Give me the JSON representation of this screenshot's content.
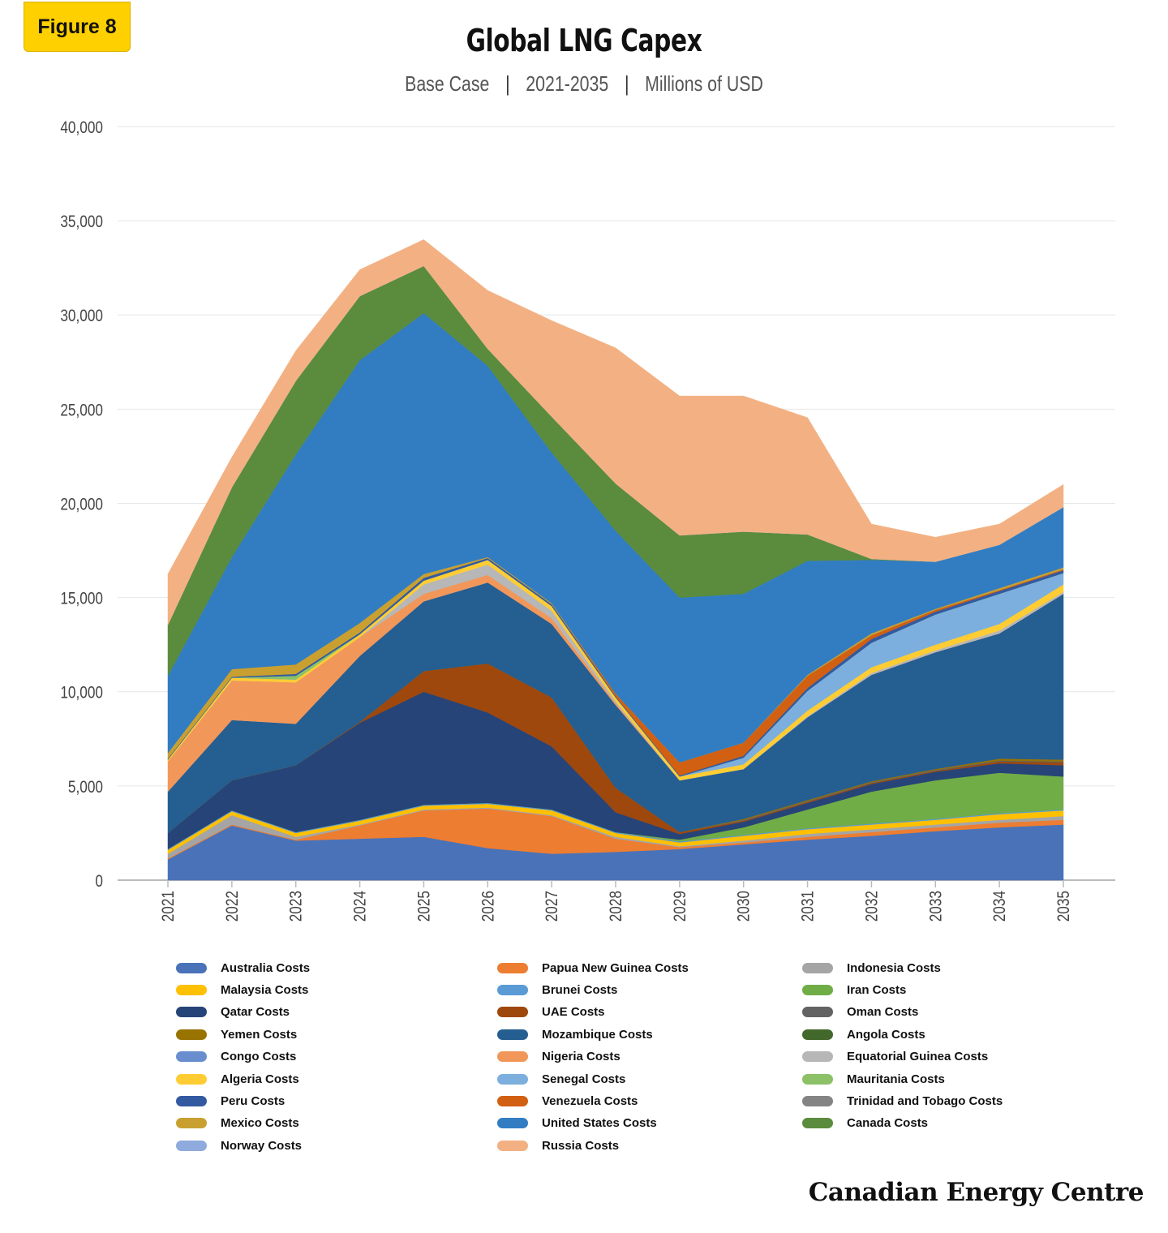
{
  "badge": "Figure 8",
  "header": {
    "title": "Global LNG Capex",
    "subtitle_parts": [
      "Base Case",
      "2021-2035",
      "Millions of USD"
    ],
    "separator": "|"
  },
  "footer": {
    "brand": "Canadian Energy Centre"
  },
  "chart_data": {
    "type": "area",
    "stacked": true,
    "title": "Global LNG Capex",
    "subtitle": "Base Case | 2021-2035 | Millions of USD",
    "xlabel": "",
    "ylabel": "",
    "ylim": [
      0,
      40000
    ],
    "yticks": [
      "0",
      "5,000",
      "10,000",
      "15,000",
      "20,000",
      "25,000",
      "30,000",
      "35,000",
      "40,000"
    ],
    "ytick_values": [
      0,
      5000,
      10000,
      15000,
      20000,
      25000,
      30000,
      35000,
      40000
    ],
    "grid": true,
    "legend_position": "bottom",
    "categories": [
      "2021",
      "2022",
      "2023",
      "2024",
      "2025",
      "2026",
      "2027",
      "2028",
      "2029",
      "2030",
      "2031",
      "2032",
      "2033",
      "2034",
      "2035"
    ],
    "series": [
      {
        "name": "Australia Costs",
        "color": "#4a72b8",
        "values": [
          1100,
          2900,
          2100,
          2200,
          2300,
          1700,
          1400,
          1500,
          1650,
          1900,
          2150,
          2350,
          2600,
          2800,
          2950
        ]
      },
      {
        "name": "Papua New Guinea Costs",
        "color": "#ed7d31",
        "values": [
          50,
          50,
          50,
          700,
          1400,
          2100,
          2000,
          700,
          100,
          100,
          150,
          200,
          200,
          250,
          250
        ]
      },
      {
        "name": "Indonesia Costs",
        "color": "#a5a5a5",
        "values": [
          250,
          500,
          150,
          50,
          50,
          50,
          50,
          100,
          50,
          100,
          150,
          150,
          150,
          150,
          200
        ]
      },
      {
        "name": "Malaysia Costs",
        "color": "#ffc000",
        "values": [
          200,
          200,
          200,
          200,
          200,
          200,
          250,
          200,
          200,
          250,
          250,
          250,
          250,
          300,
          300
        ]
      },
      {
        "name": "Brunei Costs",
        "color": "#5b9bd5",
        "values": [
          50,
          50,
          50,
          50,
          50,
          50,
          50,
          50,
          50,
          50,
          50,
          50,
          50,
          50,
          50
        ]
      },
      {
        "name": "Iran Costs",
        "color": "#70ad47",
        "values": [
          0,
          0,
          0,
          0,
          0,
          0,
          0,
          0,
          100,
          400,
          1000,
          1700,
          2050,
          2150,
          1750
        ]
      },
      {
        "name": "Qatar Costs",
        "color": "#264478",
        "values": [
          850,
          1600,
          3550,
          5150,
          6000,
          4800,
          3350,
          1050,
          300,
          300,
          350,
          400,
          450,
          500,
          600
        ]
      },
      {
        "name": "UAE Costs",
        "color": "#9e480e",
        "values": [
          0,
          0,
          0,
          50,
          1100,
          2600,
          2600,
          1300,
          100,
          50,
          50,
          50,
          50,
          100,
          150
        ]
      },
      {
        "name": "Oman Costs",
        "color": "#636363",
        "values": [
          0,
          0,
          0,
          0,
          0,
          0,
          0,
          0,
          0,
          50,
          50,
          50,
          50,
          50,
          50
        ]
      },
      {
        "name": "Yemen Costs",
        "color": "#997300",
        "values": [
          0,
          0,
          0,
          0,
          0,
          0,
          0,
          0,
          0,
          50,
          50,
          50,
          50,
          100,
          100
        ]
      },
      {
        "name": "Mozambique Costs",
        "color": "#255e91",
        "values": [
          2200,
          3200,
          2200,
          3500,
          3700,
          4300,
          3900,
          4400,
          2750,
          2650,
          4400,
          5650,
          6200,
          6650,
          8800
        ]
      },
      {
        "name": "Angola Costs",
        "color": "#43682b",
        "values": [
          0,
          0,
          0,
          0,
          0,
          0,
          0,
          0,
          0,
          0,
          0,
          0,
          0,
          0,
          0
        ]
      },
      {
        "name": "Congo Costs",
        "color": "#698ed0",
        "values": [
          0,
          0,
          0,
          0,
          0,
          0,
          0,
          0,
          0,
          0,
          0,
          0,
          0,
          0,
          0
        ]
      },
      {
        "name": "Nigeria Costs",
        "color": "#f1975a",
        "values": [
          1600,
          2100,
          2200,
          1000,
          400,
          400,
          300,
          100,
          0,
          0,
          0,
          0,
          0,
          0,
          0
        ]
      },
      {
        "name": "Equatorial Guinea Costs",
        "color": "#b7b7b7",
        "values": [
          0,
          0,
          0,
          0,
          500,
          550,
          400,
          100,
          0,
          0,
          50,
          100,
          100,
          150,
          100
        ]
      },
      {
        "name": "Algeria Costs",
        "color": "#ffcd33",
        "values": [
          100,
          150,
          150,
          150,
          200,
          250,
          250,
          200,
          200,
          250,
          300,
          300,
          300,
          350,
          400
        ]
      },
      {
        "name": "Senegal Costs",
        "color": "#7cafdd",
        "values": [
          0,
          0,
          0,
          0,
          0,
          0,
          0,
          0,
          0,
          350,
          1050,
          1300,
          1600,
          1600,
          600
        ]
      },
      {
        "name": "Mauritania Costs",
        "color": "#8cc168",
        "values": [
          0,
          0,
          200,
          0,
          0,
          0,
          0,
          0,
          0,
          0,
          0,
          0,
          0,
          0,
          0
        ]
      },
      {
        "name": "Peru Costs",
        "color": "#335aa1",
        "values": [
          50,
          50,
          100,
          100,
          150,
          100,
          100,
          50,
          50,
          100,
          150,
          200,
          150,
          150,
          150
        ]
      },
      {
        "name": "Venezuela Costs",
        "color": "#d26012",
        "values": [
          0,
          0,
          0,
          0,
          0,
          0,
          0,
          150,
          700,
          700,
          650,
          200,
          100,
          50,
          50
        ]
      },
      {
        "name": "Trinidad and Tobago Costs",
        "color": "#848484",
        "values": [
          0,
          0,
          0,
          0,
          0,
          0,
          0,
          0,
          0,
          0,
          0,
          0,
          0,
          0,
          0
        ]
      },
      {
        "name": "Mexico Costs",
        "color": "#c9a030",
        "values": [
          300,
          400,
          500,
          500,
          200,
          50,
          50,
          0,
          0,
          0,
          50,
          100,
          50,
          100,
          100
        ]
      },
      {
        "name": "United States Costs",
        "color": "#327dc2",
        "values": [
          4100,
          5950,
          11150,
          13950,
          13850,
          10150,
          8000,
          8650,
          8750,
          7900,
          6050,
          3900,
          2500,
          2300,
          3200
        ]
      },
      {
        "name": "Canada Costs",
        "color": "#5b8c3d",
        "values": [
          2700,
          3700,
          3900,
          3400,
          2500,
          900,
          1900,
          2500,
          3300,
          3300,
          1400,
          50,
          0,
          0,
          0
        ]
      },
      {
        "name": "Norway Costs",
        "color": "#8faadc",
        "values": [
          0,
          0,
          0,
          0,
          0,
          0,
          0,
          0,
          0,
          0,
          0,
          0,
          0,
          0,
          0
        ]
      },
      {
        "name": "Russia Costs",
        "color": "#f3b183",
        "values": [
          2700,
          1600,
          1600,
          1400,
          1400,
          3100,
          5100,
          7200,
          7400,
          7200,
          6200,
          1850,
          1300,
          1100,
          1200
        ]
      }
    ],
    "legend_order": [
      "Australia Costs",
      "Papua New Guinea Costs",
      "Indonesia Costs",
      "Malaysia Costs",
      "Brunei Costs",
      "Iran Costs",
      "Qatar Costs",
      "UAE Costs",
      "Oman Costs",
      "Yemen Costs",
      "Mozambique Costs",
      "Angola Costs",
      "Congo Costs",
      "Nigeria Costs",
      "Equatorial Guinea Costs",
      "Algeria Costs",
      "Senegal Costs",
      "Mauritania Costs",
      "Peru Costs",
      "Venezuela Costs",
      "Trinidad and Tobago Costs",
      "Mexico Costs",
      "United States Costs",
      "Canada Costs",
      "Norway Costs",
      "Russia Costs"
    ]
  }
}
